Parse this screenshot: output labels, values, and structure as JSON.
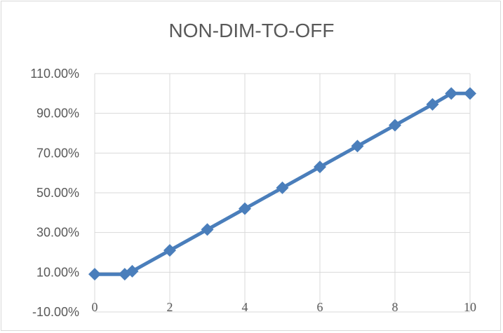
{
  "chart_data": {
    "type": "line",
    "title": "NON-DIM-TO-OFF",
    "xlabel": "",
    "ylabel": "",
    "xlim": [
      0,
      10
    ],
    "ylim": [
      -10,
      110
    ],
    "x_ticks": [
      0,
      2,
      4,
      6,
      8,
      10
    ],
    "y_ticks": [
      -10,
      10,
      30,
      50,
      70,
      90,
      110
    ],
    "x_tick_labels": [
      "0",
      "2",
      "4",
      "6",
      "8",
      "10"
    ],
    "y_tick_labels": [
      "-10.00%",
      "10.00%",
      "30.00%",
      "50.00%",
      "70.00%",
      "90.00%",
      "110.00%"
    ],
    "grid": true,
    "legend": "none",
    "series": [
      {
        "color": "#4a7ebb",
        "marker": "diamond",
        "x": [
          0,
          0.8,
          1,
          2,
          3,
          4,
          5,
          6,
          7,
          8,
          9,
          9.5,
          10
        ],
        "y": [
          9,
          9,
          10.5,
          21,
          31.5,
          42,
          52.5,
          63,
          73.5,
          84,
          94.5,
          100,
          100
        ]
      }
    ]
  }
}
